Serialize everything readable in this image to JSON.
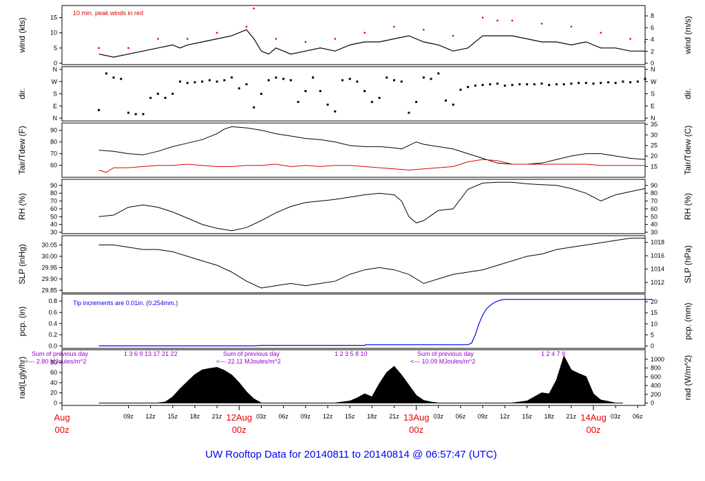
{
  "title": "UW Rooftop Data for 20140811  to  20140814 @ 06:57:47  (UTC)",
  "colors": {
    "black": "#000000",
    "red": "#dd0000",
    "blue": "#0000ee",
    "purple": "#9900cc",
    "date_red": "#ee0000",
    "title_blue": "#0000ee"
  },
  "time_axis": {
    "hours_span": 79,
    "tick_labels": [
      "09z",
      "12z",
      "15z",
      "18z",
      "21z",
      "03z",
      "06z",
      "09z",
      "12z",
      "15z",
      "18z",
      "21z",
      "03z",
      "06z",
      "09z",
      "12z",
      "15z",
      "18z",
      "21z",
      "03z",
      "06z"
    ],
    "tick_hours": [
      9,
      12,
      15,
      18,
      21,
      27,
      30,
      33,
      36,
      39,
      42,
      45,
      51,
      54,
      57,
      60,
      63,
      66,
      69,
      75,
      78
    ],
    "date_labels": [
      {
        "day": "Aug",
        "hour": "00z",
        "at_hour": 0
      },
      {
        "day": "12Aug",
        "hour": "00z",
        "at_hour": 24
      },
      {
        "day": "13Aug",
        "hour": "00z",
        "at_hour": 48
      },
      {
        "day": "14Aug",
        "hour": "00z",
        "at_hour": 72
      }
    ]
  },
  "chart_data": [
    {
      "type": "line",
      "id": "wind",
      "ylabel_left": "wind (kts)",
      "ylabel_right": "wind (m/s)",
      "ylim": [
        0,
        18.5
      ],
      "left_ticks": [
        "0",
        "5",
        "10",
        "15"
      ],
      "left_tick_values": [
        0,
        5,
        10,
        15
      ],
      "right_ticks": [
        "0",
        "2",
        "4",
        "6",
        "8"
      ],
      "right_tick_values_ms": [
        0,
        2,
        4,
        6,
        8
      ],
      "annotation": "10 min. peak winds in red",
      "series": [
        {
          "name": "wind speed (kts)",
          "x_hours": [
            5,
            7,
            9,
            11,
            13,
            15,
            16,
            17,
            19,
            21,
            23,
            25,
            26,
            27,
            28,
            29,
            30,
            31,
            33,
            35,
            37,
            39,
            41,
            43,
            45,
            47,
            49,
            51,
            53,
            55,
            57,
            59,
            61,
            63,
            65,
            67,
            69,
            71,
            73,
            75,
            77,
            79
          ],
          "values": [
            3,
            2,
            3,
            4,
            5,
            6,
            5,
            6,
            7,
            8,
            9,
            11,
            8,
            4,
            3,
            5,
            4,
            3,
            4,
            5,
            4,
            6,
            7,
            7,
            8,
            9,
            7,
            6,
            4,
            5,
            9,
            9,
            9,
            8,
            7,
            7,
            6,
            7,
            5,
            5,
            4,
            4
          ]
        },
        {
          "name": "10 min. peak (kts)",
          "x_hours": [
            5,
            9,
            13,
            17,
            21,
            25,
            26,
            29,
            33,
            37,
            41,
            45,
            49,
            53,
            57,
            59,
            61,
            65,
            69,
            73,
            77,
            79
          ],
          "values": [
            5,
            5,
            8,
            8,
            10,
            12,
            18,
            8,
            7,
            8,
            10,
            12,
            11,
            9,
            15,
            14,
            14,
            13,
            12,
            10,
            8,
            7
          ]
        }
      ]
    },
    {
      "type": "scatter",
      "id": "dir",
      "ylabel_left": "dir.",
      "ylabel_right": "dir.",
      "ticks": [
        "N",
        "E",
        "S",
        "W",
        "N"
      ],
      "tick_values_deg": [
        0,
        90,
        180,
        270,
        360
      ],
      "series": [
        {
          "name": "wind direction (deg)",
          "x_hours": [
            5,
            6,
            7,
            8,
            9,
            10,
            11,
            12,
            13,
            14,
            15,
            16,
            17,
            18,
            19,
            20,
            21,
            22,
            23,
            24,
            25,
            26,
            27,
            28,
            29,
            30,
            31,
            32,
            33,
            34,
            35,
            36,
            37,
            38,
            39,
            40,
            41,
            42,
            43,
            44,
            45,
            46,
            47,
            48,
            49,
            50,
            51,
            52,
            53,
            54,
            55,
            56,
            57,
            58,
            59,
            60,
            61,
            62,
            63,
            64,
            65,
            66,
            67,
            68,
            69,
            70,
            71,
            72,
            73,
            74,
            75,
            76,
            77,
            78,
            79
          ],
          "values": [
            60,
            330,
            300,
            290,
            40,
            30,
            30,
            150,
            180,
            150,
            180,
            270,
            260,
            265,
            270,
            280,
            270,
            280,
            300,
            220,
            250,
            80,
            180,
            280,
            300,
            290,
            280,
            120,
            200,
            300,
            200,
            100,
            50,
            280,
            290,
            270,
            200,
            120,
            150,
            300,
            280,
            270,
            40,
            120,
            300,
            290,
            330,
            130,
            100,
            210,
            230,
            240,
            245,
            250,
            255,
            240,
            245,
            250,
            250,
            250,
            255,
            245,
            250,
            250,
            255,
            260,
            260,
            255,
            260,
            265,
            260,
            270,
            265,
            270,
            290
          ]
        }
      ]
    },
    {
      "type": "line",
      "id": "temp",
      "ylabel_left": "Tair/Tdew (F)",
      "ylabel_right": "Tair/Tdew (C)",
      "ylim": [
        51,
        95
      ],
      "left_ticks": [
        "60",
        "70",
        "80",
        "90"
      ],
      "left_tick_values": [
        60,
        70,
        80,
        90
      ],
      "right_ticks": [
        "15",
        "20",
        "25",
        "30",
        "35"
      ],
      "right_tick_values_c": [
        15,
        20,
        25,
        30,
        35
      ],
      "series": [
        {
          "name": "Tair (F)",
          "x_hours": [
            5,
            7,
            9,
            11,
            13,
            15,
            17,
            19,
            21,
            22,
            23,
            25,
            27,
            29,
            31,
            33,
            35,
            37,
            39,
            41,
            43,
            45,
            46,
            47,
            48,
            49,
            51,
            53,
            55,
            57,
            59,
            61,
            63,
            65,
            67,
            69,
            71,
            73,
            75,
            77,
            79
          ],
          "values": [
            73,
            72,
            70,
            69,
            72,
            76,
            79,
            82,
            87,
            91,
            93,
            92,
            90,
            87,
            85,
            83,
            82,
            80,
            77,
            76,
            76,
            75,
            74,
            77,
            80,
            78,
            76,
            74,
            70,
            66,
            62,
            61,
            61,
            62,
            65,
            68,
            70,
            70,
            68,
            66,
            65
          ]
        },
        {
          "name": "Tdew (F)",
          "x_hours": [
            5,
            6,
            7,
            9,
            11,
            13,
            15,
            17,
            19,
            21,
            23,
            25,
            27,
            29,
            31,
            33,
            35,
            37,
            39,
            41,
            43,
            45,
            47,
            49,
            51,
            53,
            55,
            57,
            59,
            61,
            63,
            65,
            67,
            69,
            71,
            73,
            75,
            77,
            79
          ],
          "values": [
            56,
            54,
            58,
            58,
            59,
            60,
            60,
            61,
            60,
            59,
            59,
            60,
            60,
            61,
            59,
            60,
            59,
            60,
            60,
            59,
            58,
            57,
            56,
            57,
            58,
            59,
            63,
            65,
            64,
            61,
            61,
            61,
            61,
            61,
            61,
            60,
            60,
            60,
            60
          ]
        }
      ]
    },
    {
      "type": "line",
      "id": "rh",
      "ylabel_left": "RH (%)",
      "ylabel_right": "RH (%)",
      "ylim": [
        30,
        96
      ],
      "left_ticks": [
        "30",
        "40",
        "50",
        "60",
        "70",
        "80",
        "90"
      ],
      "left_tick_values": [
        30,
        40,
        50,
        60,
        70,
        80,
        90
      ],
      "right_ticks": [
        "30",
        "40",
        "50",
        "60",
        "70",
        "80",
        "90"
      ],
      "series": [
        {
          "name": "relative humidity (%)",
          "x_hours": [
            5,
            7,
            9,
            11,
            13,
            15,
            17,
            19,
            21,
            23,
            25,
            27,
            29,
            31,
            33,
            35,
            37,
            39,
            41,
            43,
            45,
            46,
            47,
            48,
            49,
            51,
            53,
            55,
            57,
            59,
            61,
            63,
            65,
            67,
            69,
            71,
            73,
            75,
            77,
            79
          ],
          "values": [
            50,
            52,
            62,
            65,
            62,
            56,
            48,
            40,
            35,
            32,
            36,
            45,
            55,
            63,
            68,
            70,
            72,
            75,
            78,
            80,
            78,
            70,
            50,
            42,
            45,
            58,
            60,
            85,
            93,
            94,
            94,
            92,
            91,
            90,
            86,
            80,
            70,
            78,
            82,
            86
          ]
        }
      ]
    },
    {
      "type": "line",
      "id": "slp",
      "ylabel_left": "SLP (inHg)",
      "ylabel_right": "SLP (hPa)",
      "ylim": [
        29.845,
        30.085
      ],
      "left_ticks": [
        "29.85",
        "29.90",
        "29.95",
        "30.00",
        "30.05"
      ],
      "left_tick_values": [
        29.85,
        29.9,
        29.95,
        30.0,
        30.05
      ],
      "right_ticks": [
        "1012",
        "1014",
        "1016",
        "1018"
      ],
      "right_tick_values_hpa": [
        1012,
        1014,
        1016,
        1018
      ],
      "series": [
        {
          "name": "sea level pressure (inHg)",
          "x_hours": [
            5,
            7,
            9,
            11,
            13,
            15,
            17,
            19,
            21,
            23,
            25,
            27,
            29,
            31,
            33,
            35,
            37,
            39,
            41,
            43,
            45,
            47,
            49,
            51,
            53,
            55,
            57,
            59,
            61,
            63,
            65,
            67,
            69,
            71,
            73,
            75,
            77,
            79
          ],
          "values": [
            30.05,
            30.05,
            30.04,
            30.03,
            30.03,
            30.02,
            30.0,
            29.98,
            29.96,
            29.93,
            29.89,
            29.86,
            29.87,
            29.88,
            29.87,
            29.88,
            29.89,
            29.92,
            29.94,
            29.95,
            29.94,
            29.92,
            29.88,
            29.9,
            29.92,
            29.93,
            29.94,
            29.96,
            29.98,
            30.0,
            30.01,
            30.03,
            30.04,
            30.05,
            30.06,
            30.07,
            30.08,
            30.08
          ]
        }
      ]
    },
    {
      "type": "area",
      "id": "pcp",
      "ylabel_left": "pcp. (in)",
      "ylabel_right": "pcp. (mm)",
      "ylim": [
        -0.02,
        0.9
      ],
      "left_ticks": [
        "0.0",
        "0.2",
        "0.4",
        "0.6",
        "0.8"
      ],
      "left_tick_values": [
        0.0,
        0.2,
        0.4,
        0.6,
        0.8
      ],
      "right_ticks": [
        "0",
        "5",
        "10",
        "15",
        "20"
      ],
      "right_tick_values_mm": [
        0,
        5,
        10,
        15,
        20
      ],
      "annotation": "Tip increments are 0.01in. (0.254mm.)",
      "series": [
        {
          "name": "cumulative precipitation (in)",
          "x_hours": [
            5,
            26,
            27,
            31,
            40,
            41,
            41.1,
            55,
            55.5,
            56,
            56.5,
            57,
            57.5,
            58,
            58.5,
            59,
            59.5,
            60,
            80
          ],
          "values": [
            0,
            0,
            0.01,
            0.01,
            0.01,
            0.01,
            0.02,
            0.02,
            0.05,
            0.2,
            0.4,
            0.55,
            0.66,
            0.72,
            0.77,
            0.8,
            0.82,
            0.83,
            0.83
          ]
        }
      ]
    },
    {
      "type": "area",
      "id": "rad",
      "ylabel_left": "rad(Lgly/hr)",
      "ylabel_right": "rad (W/m^2)",
      "ylim": [
        -2,
        102
      ],
      "left_ticks": [
        "0",
        "20",
        "40",
        "60",
        "80"
      ],
      "left_tick_values": [
        0,
        20,
        40,
        60,
        80
      ],
      "right_ticks": [
        "0",
        "200",
        "400",
        "600",
        "800",
        "1000"
      ],
      "right_tick_values_wm2": [
        0,
        200,
        400,
        600,
        800,
        1000
      ],
      "series": [
        {
          "name": "solar radiation (Lgly/hr)",
          "x_hours": [
            5,
            13,
            14,
            15,
            16,
            17,
            18,
            19,
            20,
            21,
            22,
            23,
            24,
            25,
            26,
            27,
            37,
            38,
            39,
            40,
            41,
            42,
            43,
            44,
            45,
            46,
            47,
            48,
            49,
            50,
            51,
            61,
            62,
            63,
            64,
            65,
            66,
            67,
            68,
            69,
            70,
            71,
            72,
            73,
            74,
            75,
            76
          ],
          "values": [
            0,
            0,
            2,
            12,
            28,
            42,
            56,
            65,
            68,
            70,
            64,
            55,
            40,
            22,
            8,
            0,
            0,
            2,
            4,
            10,
            18,
            12,
            38,
            60,
            72,
            55,
            35,
            15,
            5,
            2,
            0,
            0,
            2,
            4,
            12,
            20,
            18,
            45,
            92,
            65,
            58,
            52,
            18,
            6,
            3,
            0,
            0
          ]
        }
      ],
      "day_labels": [
        {
          "title": "Sum of previous day",
          "sum": "<--- 2.80 MJoules/m^2",
          "hours": "1   3   6   9   13   17   21   22"
        },
        {
          "title": "Sum of previous day",
          "sum": "<--- 22.11 MJoules/m^2",
          "hours": "1   2   3   5   8   10"
        },
        {
          "title": "Sum of previous day",
          "sum": "<--- 10.09 MJoules/m^2",
          "hours": "1   2   4   7   9"
        }
      ]
    }
  ]
}
